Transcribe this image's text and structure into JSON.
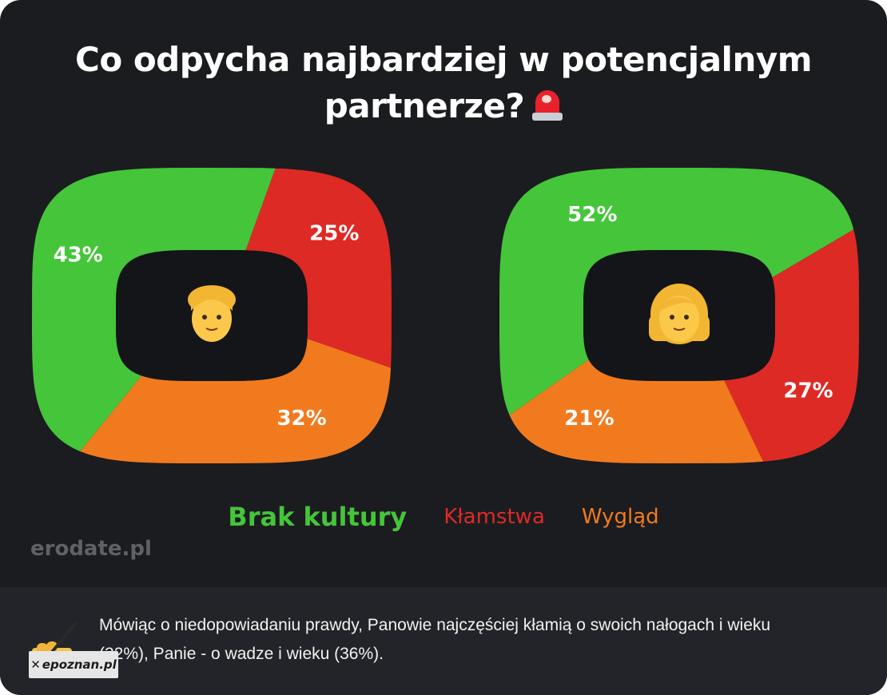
{
  "title": {
    "line1": "Co odpycha najbardziej w potencjalnym",
    "line2": "partnerze?",
    "icon": "siren-icon"
  },
  "colors": {
    "background": "#1b1c20",
    "green": "#45c53a",
    "red": "#de2a25",
    "orange": "#f27a1e",
    "hole": "#141518"
  },
  "chart_data": [
    {
      "type": "pie",
      "style": "donut",
      "group": "men",
      "center_icon": "man-emoji",
      "categories": [
        "Brak kultury",
        "Kłamstwa",
        "Wygląd"
      ],
      "values": [
        43,
        25,
        32
      ],
      "labels": [
        "43%",
        "25%",
        "32%"
      ],
      "unit": "%"
    },
    {
      "type": "pie",
      "style": "donut",
      "group": "women",
      "center_icon": "woman-emoji",
      "categories": [
        "Brak kultury",
        "Kłamstwa",
        "Wygląd"
      ],
      "values": [
        52,
        27,
        21
      ],
      "labels": [
        "52%",
        "27%",
        "21%"
      ],
      "unit": "%"
    }
  ],
  "legend": {
    "items": [
      {
        "label": "Brak kultury",
        "color": "#45c53a"
      },
      {
        "label": "Kłamstwa",
        "color": "#de2a25"
      },
      {
        "label": "Wygląd",
        "color": "#f27a1e"
      }
    ],
    "placement": "bottom-center"
  },
  "brand": "erodate.pl",
  "note": {
    "icon": "writing-hand-icon",
    "text": "Mówiąc o niedopowiadaniu prawdy, Panowie najczęściej kłamią o swoich nałogach i wieku (32%), Panie - o wadze i wieku (36%)."
  },
  "source": "epoznan.pl"
}
